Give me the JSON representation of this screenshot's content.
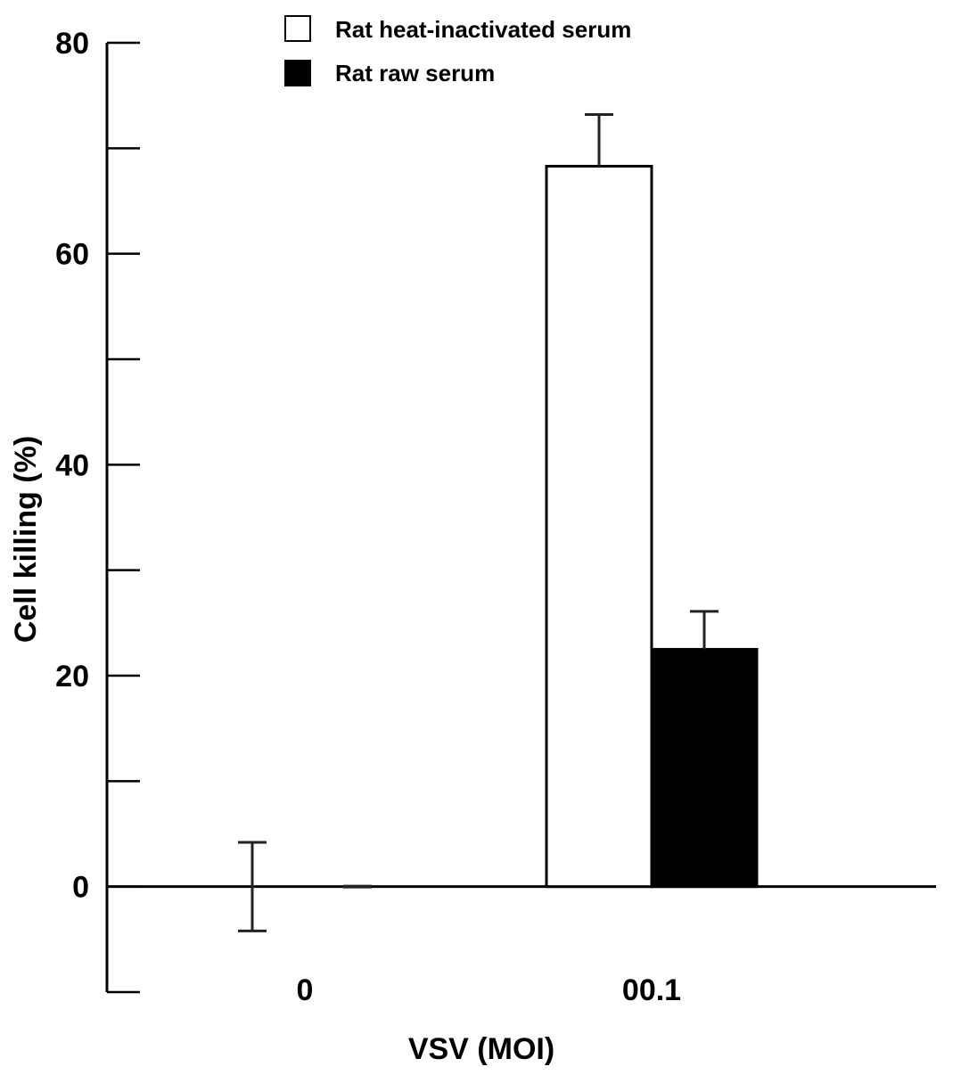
{
  "chart_data": {
    "type": "bar",
    "categories": [
      "0",
      "00.1"
    ],
    "series": [
      {
        "name": "Rat heat-inactivated serum",
        "values": [
          0,
          68.3
        ],
        "errors": [
          4.2,
          4.9
        ],
        "color": "#ffffff"
      },
      {
        "name": "Rat raw serum",
        "values": [
          0,
          22.5
        ],
        "errors": [
          0,
          3.6
        ],
        "color": "#000000"
      }
    ],
    "title": "",
    "xlabel": "VSV (MOI)",
    "ylabel": "Cell killing (%)",
    "ylim": [
      -10,
      80
    ],
    "yticks_labeled": [
      "0",
      "20",
      "40",
      "60",
      "80"
    ],
    "ytick_values": [
      0,
      20,
      40,
      60,
      80
    ],
    "yminor_tick_values": [
      -10,
      10,
      30,
      50,
      70
    ],
    "grid": false,
    "legend_position": "top"
  }
}
